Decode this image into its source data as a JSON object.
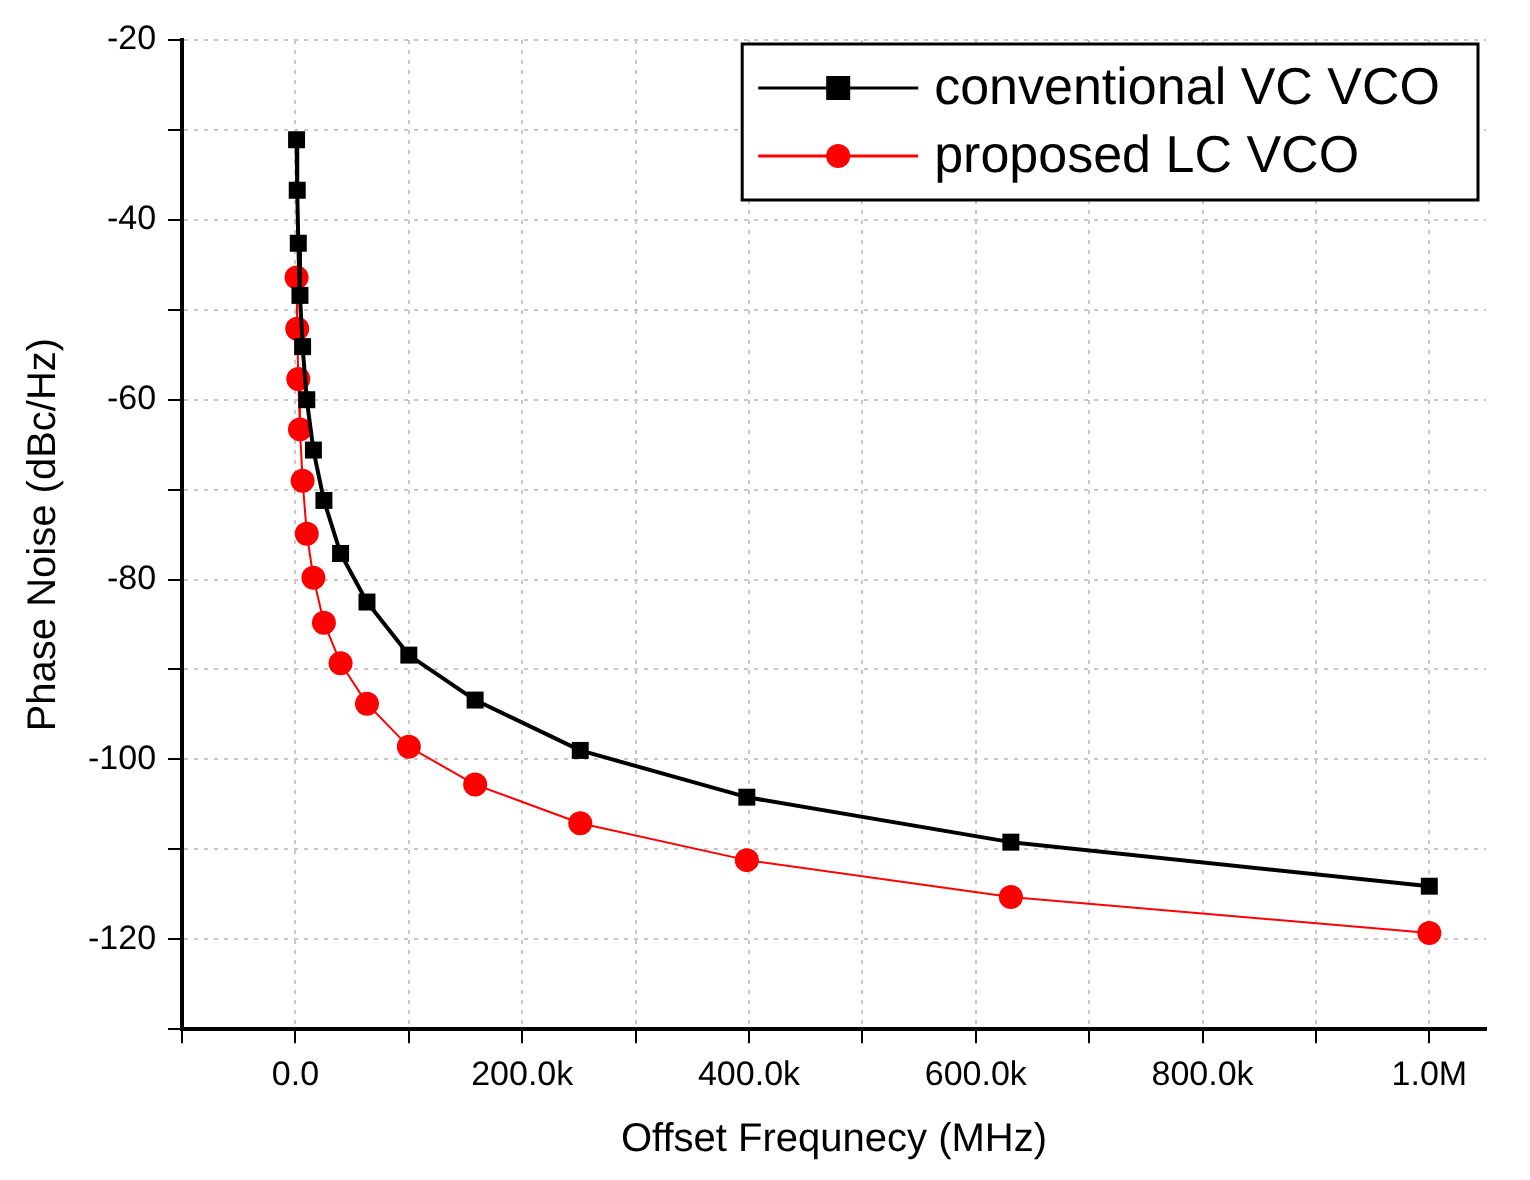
{
  "chart_data": {
    "type": "line",
    "xlabel": "Offset Frequnecy (MHz)",
    "ylabel": "Phase Noise (dBc/Hz)",
    "x": [
      1000,
      1585,
      2512,
      3981,
      6310,
      10000,
      15849,
      25119,
      39811,
      63096,
      100000,
      158489,
      251189,
      398107,
      630957,
      1000000
    ],
    "series": [
      {
        "name": "conventional VC VCO",
        "color": "#000000",
        "marker": "square",
        "values": [
          -31.1,
          -36.7,
          -42.6,
          -48.4,
          -54.1,
          -60.0,
          -65.6,
          -71.2,
          -77.1,
          -82.5,
          -88.4,
          -93.4,
          -99.0,
          -104.2,
          -109.2,
          -114.1
        ]
      },
      {
        "name": "proposed LC VCO",
        "color": "#ff0000",
        "marker": "circle",
        "values": [
          -46.4,
          -52.1,
          -57.7,
          -63.3,
          -69.0,
          -74.9,
          -79.8,
          -84.8,
          -89.3,
          -93.8,
          -98.6,
          -102.8,
          -107.1,
          -111.2,
          -115.3,
          -119.3
        ]
      }
    ],
    "xlim": [
      -100000,
      1050000
    ],
    "xticks": [
      {
        "value": -100000,
        "label": null
      },
      {
        "value": 0,
        "label": "0.0"
      },
      {
        "value": 100000,
        "label": null
      },
      {
        "value": 200000,
        "label": "200.0k"
      },
      {
        "value": 300000,
        "label": null
      },
      {
        "value": 400000,
        "label": "400.0k"
      },
      {
        "value": 500000,
        "label": null
      },
      {
        "value": 600000,
        "label": "600.0k"
      },
      {
        "value": 700000,
        "label": null
      },
      {
        "value": 800000,
        "label": "800.0k"
      },
      {
        "value": 900000,
        "label": null
      },
      {
        "value": 1000000,
        "label": "1.0M"
      }
    ],
    "ylim": [
      -130,
      -20
    ],
    "yticks": [
      {
        "value": -130,
        "label": null
      },
      -120,
      {
        "value": -110,
        "label": null
      },
      -100,
      {
        "value": -90,
        "label": null
      },
      -80,
      {
        "value": -70,
        "label": null
      },
      -60,
      {
        "value": -50,
        "label": null
      },
      -40,
      {
        "value": -30,
        "label": null
      },
      -20
    ],
    "grid": true,
    "legend": "top right",
    "line_style": "solid"
  }
}
